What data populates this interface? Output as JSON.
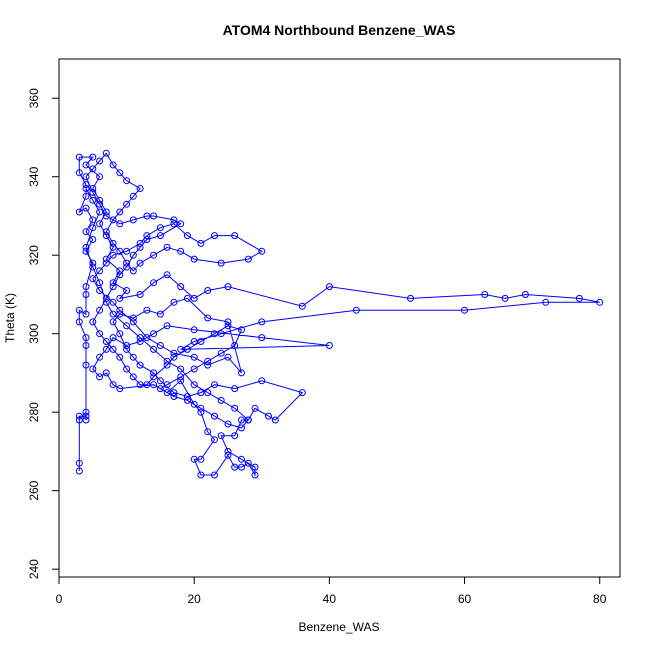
{
  "chart_data": {
    "type": "line",
    "title": "ATOM4 Northbound Benzene_WAS",
    "xlabel": "Benzene_WAS",
    "ylabel": "Theta (K)",
    "xlim": [
      0,
      83
    ],
    "ylim": [
      238,
      370
    ],
    "x_ticks": [
      0,
      20,
      40,
      60,
      80
    ],
    "y_ticks": [
      240,
      260,
      280,
      300,
      320,
      340,
      360
    ],
    "grid": false,
    "legend": "none",
    "series_color": "#0000ff",
    "marker": "open-circle",
    "series": [
      {
        "points": [
          [
            3,
            265
          ],
          [
            3,
            267
          ],
          [
            3,
            278
          ],
          [
            3,
            279
          ],
          [
            4,
            279
          ],
          [
            4,
            280
          ],
          [
            4,
            278
          ],
          [
            4,
            292
          ],
          [
            4,
            297
          ],
          [
            4,
            299
          ],
          [
            3,
            303
          ],
          [
            3,
            306
          ],
          [
            4,
            305
          ],
          [
            4,
            310
          ],
          [
            4,
            312
          ],
          [
            5,
            318
          ],
          [
            4,
            321
          ],
          [
            5,
            324
          ],
          [
            4,
            326
          ],
          [
            5,
            329
          ],
          [
            4,
            332
          ],
          [
            3,
            331
          ],
          [
            4,
            335
          ],
          [
            4,
            338
          ],
          [
            3,
            341
          ],
          [
            3,
            345
          ],
          [
            5,
            345
          ],
          [
            4,
            343
          ],
          [
            6,
            340
          ],
          [
            5,
            337
          ],
          [
            6,
            334
          ],
          [
            7,
            331
          ],
          [
            6,
            328
          ],
          [
            7,
            325
          ],
          [
            8,
            322
          ],
          [
            7,
            319
          ],
          [
            9,
            316
          ],
          [
            8,
            313
          ],
          [
            10,
            311
          ],
          [
            9,
            309
          ],
          [
            12,
            310
          ],
          [
            14,
            313
          ],
          [
            16,
            315
          ],
          [
            18,
            312
          ],
          [
            20,
            309
          ],
          [
            22,
            311
          ],
          [
            25,
            312
          ],
          [
            36,
            307
          ],
          [
            40,
            312
          ],
          [
            52,
            309
          ],
          [
            63,
            310
          ],
          [
            66,
            309
          ],
          [
            69,
            310
          ],
          [
            77,
            309
          ],
          [
            80,
            308
          ],
          [
            72,
            308
          ],
          [
            60,
            306
          ],
          [
            44,
            306
          ],
          [
            30,
            303
          ],
          [
            24,
            300
          ],
          [
            20,
            298
          ],
          [
            18,
            296
          ],
          [
            40,
            297
          ],
          [
            30,
            299
          ],
          [
            20,
            301
          ],
          [
            16,
            302
          ],
          [
            14,
            300
          ],
          [
            12,
            298
          ],
          [
            10,
            297
          ],
          [
            8,
            299
          ],
          [
            7,
            296
          ],
          [
            6,
            294
          ],
          [
            5,
            291
          ],
          [
            6,
            289
          ],
          [
            7,
            290
          ],
          [
            8,
            287
          ],
          [
            9,
            286
          ],
          [
            14,
            287
          ],
          [
            16,
            285
          ],
          [
            18,
            288
          ],
          [
            20,
            282
          ],
          [
            21,
            280
          ],
          [
            22,
            275
          ],
          [
            23,
            273
          ],
          [
            21,
            268
          ],
          [
            20,
            268
          ],
          [
            21,
            264
          ],
          [
            23,
            264
          ],
          [
            25,
            269
          ],
          [
            26,
            266
          ],
          [
            27,
            266
          ],
          [
            28,
            267
          ],
          [
            29,
            264
          ],
          [
            29,
            266
          ],
          [
            27,
            268
          ],
          [
            25,
            270
          ],
          [
            24,
            274
          ],
          [
            26,
            274
          ],
          [
            27,
            278
          ],
          [
            28,
            278
          ],
          [
            29,
            281
          ],
          [
            31,
            279
          ],
          [
            32,
            278
          ],
          [
            36,
            285
          ],
          [
            30,
            288
          ],
          [
            26,
            286
          ],
          [
            23,
            287
          ],
          [
            21,
            285
          ],
          [
            19,
            284
          ],
          [
            17,
            285
          ],
          [
            15,
            288
          ],
          [
            14,
            290
          ],
          [
            12,
            292
          ],
          [
            11,
            294
          ],
          [
            10,
            296
          ],
          [
            9,
            300
          ],
          [
            8,
            303
          ],
          [
            9,
            305
          ],
          [
            11,
            304
          ],
          [
            13,
            306
          ],
          [
            15,
            305
          ],
          [
            17,
            308
          ],
          [
            19,
            309
          ],
          [
            22,
            304
          ],
          [
            25,
            303
          ],
          [
            27,
            290
          ],
          [
            25,
            294
          ],
          [
            22,
            292
          ],
          [
            20,
            294
          ],
          [
            17,
            295
          ],
          [
            15,
            297
          ],
          [
            13,
            299
          ],
          [
            11,
            303
          ],
          [
            9,
            306
          ],
          [
            8,
            308
          ],
          [
            6,
            311
          ],
          [
            5,
            314
          ],
          [
            6,
            316
          ],
          [
            7,
            318
          ],
          [
            8,
            320
          ],
          [
            10,
            321
          ],
          [
            12,
            323
          ],
          [
            13,
            325
          ],
          [
            15,
            327
          ],
          [
            17,
            328
          ],
          [
            19,
            325
          ],
          [
            21,
            323
          ],
          [
            23,
            325
          ],
          [
            26,
            325
          ],
          [
            30,
            321
          ],
          [
            28,
            319
          ],
          [
            24,
            318
          ],
          [
            20,
            319
          ],
          [
            18,
            321
          ],
          [
            16,
            322
          ],
          [
            14,
            320
          ],
          [
            12,
            318
          ],
          [
            11,
            316
          ],
          [
            10,
            318
          ],
          [
            9,
            321
          ],
          [
            8,
            323
          ],
          [
            7,
            326
          ],
          [
            8,
            329
          ],
          [
            9,
            331
          ],
          [
            10,
            333
          ],
          [
            11,
            335
          ],
          [
            12,
            337
          ],
          [
            10,
            339
          ],
          [
            9,
            341
          ],
          [
            8,
            343
          ],
          [
            7,
            346
          ],
          [
            6,
            344
          ],
          [
            5,
            342
          ],
          [
            4,
            340
          ],
          [
            5,
            336
          ],
          [
            6,
            333
          ],
          [
            7,
            330
          ],
          [
            9,
            328
          ],
          [
            11,
            329
          ],
          [
            13,
            330
          ],
          [
            14,
            330
          ],
          [
            17,
            329
          ],
          [
            18,
            328
          ],
          [
            15,
            325
          ],
          [
            13,
            324
          ],
          [
            12,
            322
          ],
          [
            11,
            320
          ],
          [
            10,
            317
          ],
          [
            9,
            315
          ],
          [
            8,
            312
          ],
          [
            7,
            309
          ],
          [
            6,
            306
          ],
          [
            5,
            303
          ],
          [
            6,
            300
          ],
          [
            7,
            298
          ],
          [
            8,
            296
          ],
          [
            9,
            294
          ],
          [
            10,
            291
          ],
          [
            11,
            289
          ],
          [
            12,
            287
          ],
          [
            13,
            287
          ],
          [
            14,
            289
          ],
          [
            16,
            292
          ],
          [
            17,
            294
          ],
          [
            19,
            296
          ],
          [
            21,
            298
          ],
          [
            23,
            300
          ],
          [
            25,
            302
          ],
          [
            27,
            301
          ],
          [
            26,
            297
          ],
          [
            24,
            295
          ],
          [
            22,
            293
          ],
          [
            20,
            291
          ],
          [
            18,
            289
          ],
          [
            16,
            287
          ],
          [
            15,
            286
          ],
          [
            17,
            284
          ],
          [
            19,
            283
          ],
          [
            21,
            281
          ],
          [
            23,
            279
          ],
          [
            25,
            277
          ],
          [
            27,
            276
          ],
          [
            28,
            278
          ],
          [
            26,
            281
          ],
          [
            24,
            283
          ],
          [
            22,
            285
          ],
          [
            20,
            287
          ],
          [
            18,
            291
          ],
          [
            16,
            293
          ],
          [
            14,
            296
          ],
          [
            12,
            299
          ],
          [
            10,
            302
          ],
          [
            8,
            305
          ],
          [
            7,
            308
          ],
          [
            6,
            313
          ],
          [
            5,
            317
          ],
          [
            4,
            322
          ],
          [
            5,
            327
          ],
          [
            6,
            331
          ],
          [
            5,
            334
          ],
          [
            4,
            337
          ]
        ]
      }
    ]
  }
}
